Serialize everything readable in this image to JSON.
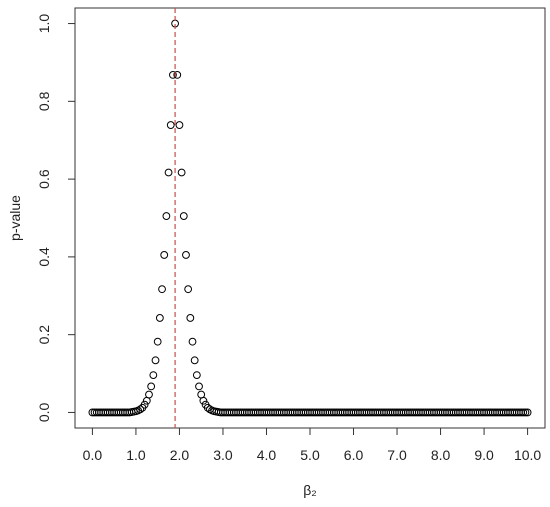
{
  "chart_data": {
    "type": "scatter",
    "xlabel": "β₂",
    "ylabel": "p-value",
    "xlim": [
      -0.4,
      10.4
    ],
    "ylim": [
      -0.04,
      1.04
    ],
    "xticks": [
      {
        "value": 0,
        "label": "0.0"
      },
      {
        "value": 1,
        "label": "1.0"
      },
      {
        "value": 2,
        "label": "2.0"
      },
      {
        "value": 3,
        "label": "3.0"
      },
      {
        "value": 4,
        "label": "4.0"
      },
      {
        "value": 5,
        "label": "5.0"
      },
      {
        "value": 6,
        "label": "6.0"
      },
      {
        "value": 7,
        "label": "7.0"
      },
      {
        "value": 8,
        "label": "8.0"
      },
      {
        "value": 9,
        "label": "9.0"
      },
      {
        "value": 10,
        "label": "10.0"
      }
    ],
    "yticks": [
      {
        "value": 0,
        "label": "0.0"
      },
      0.2,
      0.4,
      0.6,
      0.8,
      {
        "value": 1,
        "label": "1.0"
      }
    ],
    "color": "#000000",
    "vline": 1.9,
    "vline_color": "#c0504d",
    "x": [
      0,
      0.05,
      0.1,
      0.15,
      0.2,
      0.25,
      0.3,
      0.35,
      0.4,
      0.45,
      0.5,
      0.55,
      0.6,
      0.65,
      0.7,
      0.75,
      0.8,
      0.85,
      0.9,
      0.95,
      1,
      1.05,
      1.1,
      1.15,
      1.2,
      1.25,
      1.3,
      1.35,
      1.4,
      1.45,
      1.5,
      1.55,
      1.6,
      1.65,
      1.7,
      1.75,
      1.8,
      1.85,
      1.9,
      1.95,
      2,
      2.05,
      2.1,
      2.15,
      2.2,
      2.25,
      2.3,
      2.35,
      2.4,
      2.45,
      2.5,
      2.55,
      2.6,
      2.65,
      2.7,
      2.75,
      2.8,
      2.85,
      2.9,
      2.95,
      3,
      3.05,
      3.1,
      3.15,
      3.2,
      3.25,
      3.3,
      3.35,
      3.4,
      3.45,
      3.5,
      3.55,
      3.6,
      3.65,
      3.7,
      3.75,
      3.8,
      3.85,
      3.9,
      3.95,
      4,
      4.05,
      4.1,
      4.15,
      4.2,
      4.25,
      4.3,
      4.35,
      4.4,
      4.45,
      4.5,
      4.55,
      4.6,
      4.65,
      4.7,
      4.75,
      4.8,
      4.85,
      4.9,
      4.95,
      5,
      5.05,
      5.1,
      5.15,
      5.2,
      5.25,
      5.3,
      5.35,
      5.4,
      5.45,
      5.5,
      5.55,
      5.6,
      5.65,
      5.7,
      5.75,
      5.8,
      5.85,
      5.9,
      5.95,
      6,
      6.05,
      6.1,
      6.15,
      6.2,
      6.25,
      6.3,
      6.35,
      6.4,
      6.45,
      6.5,
      6.55,
      6.6,
      6.65,
      6.7,
      6.75,
      6.8,
      6.85,
      6.9,
      6.95,
      7,
      7.05,
      7.1,
      7.15,
      7.2,
      7.25,
      7.3,
      7.35,
      7.4,
      7.45,
      7.5,
      7.55,
      7.6,
      7.65,
      7.7,
      7.75,
      7.8,
      7.85,
      7.9,
      7.95,
      8,
      8.05,
      8.1,
      8.15,
      8.2,
      8.25,
      8.3,
      8.35,
      8.4,
      8.45,
      8.5,
      8.55,
      8.6,
      8.65,
      8.7,
      8.75,
      8.8,
      8.85,
      8.9,
      8.95,
      9,
      9.05,
      9.1,
      9.15,
      9.2,
      9.25,
      9.3,
      9.35,
      9.4,
      9.45,
      9.5,
      9.55,
      9.6,
      9.65,
      9.7,
      9.75,
      9.8,
      9.85,
      9.9,
      9.95,
      10
    ],
    "values": [
      0,
      0,
      0,
      0,
      0,
      0,
      0,
      0,
      0,
      0,
      0,
      0,
      0,
      0,
      0,
      0,
      0,
      0,
      0.001,
      0.002,
      0.003,
      0.005,
      0.008,
      0.012,
      0.02,
      0.03,
      0.046,
      0.067,
      0.096,
      0.134,
      0.182,
      0.243,
      0.317,
      0.405,
      0.505,
      0.617,
      0.739,
      0.868,
      1,
      0.868,
      0.739,
      0.617,
      0.505,
      0.405,
      0.317,
      0.243,
      0.182,
      0.134,
      0.096,
      0.067,
      0.046,
      0.03,
      0.02,
      0.012,
      0.008,
      0.005,
      0.003,
      0.002,
      0.001,
      0,
      0,
      0,
      0,
      0,
      0,
      0,
      0,
      0,
      0,
      0,
      0,
      0,
      0,
      0,
      0,
      0,
      0,
      0,
      0,
      0,
      0,
      0,
      0,
      0,
      0,
      0,
      0,
      0,
      0,
      0,
      0,
      0,
      0,
      0,
      0,
      0,
      0,
      0,
      0,
      0,
      0,
      0,
      0,
      0,
      0,
      0,
      0,
      0,
      0,
      0,
      0,
      0,
      0,
      0,
      0,
      0,
      0,
      0,
      0,
      0,
      0,
      0,
      0,
      0,
      0,
      0,
      0,
      0,
      0,
      0,
      0,
      0,
      0,
      0,
      0,
      0,
      0,
      0,
      0,
      0,
      0,
      0,
      0,
      0,
      0,
      0,
      0,
      0,
      0,
      0,
      0,
      0,
      0,
      0,
      0,
      0,
      0,
      0,
      0,
      0,
      0,
      0,
      0,
      0,
      0,
      0,
      0,
      0,
      0,
      0,
      0,
      0,
      0,
      0,
      0,
      0,
      0,
      0,
      0,
      0,
      0,
      0,
      0,
      0,
      0,
      0,
      0,
      0,
      0,
      0,
      0,
      0,
      0,
      0,
      0,
      0,
      0,
      0,
      0,
      0,
      0
    ]
  }
}
